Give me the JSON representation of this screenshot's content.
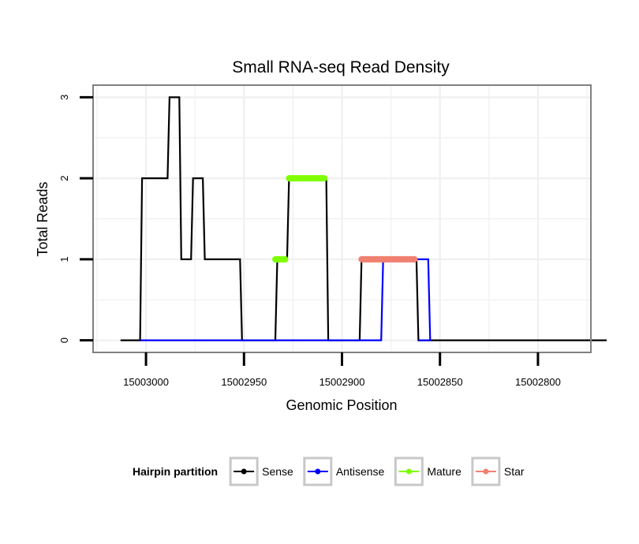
{
  "chart_data": {
    "type": "line",
    "title": "Small RNA-seq Read Density",
    "xlabel": "Genomic Position",
    "ylabel": "Total Reads",
    "x_reversed": true,
    "xlim": [
      15003027,
      15002773
    ],
    "ylim": [
      -0.15,
      3.15
    ],
    "x_ticks": [
      15003000,
      15002950,
      15002900,
      15002850,
      15002800
    ],
    "x_tick_labels": [
      "15003000",
      "15002950",
      "15002900",
      "15002850",
      "15002800"
    ],
    "y_ticks": [
      0,
      1,
      2,
      3
    ],
    "y_tick_labels": [
      "0",
      "1",
      "2",
      "3"
    ],
    "grid": true,
    "legend": {
      "title": "Hairpin partition",
      "placement": "bottom",
      "entries": [
        {
          "label": "Sense",
          "color": "#000000"
        },
        {
          "label": "Antisense",
          "color": "#0000ff"
        },
        {
          "label": "Mature",
          "color": "#7fff00"
        },
        {
          "label": "Star",
          "color": "#f08070"
        }
      ]
    },
    "series": [
      {
        "name": "Sense",
        "color": "#000000",
        "points": [
          [
            15003013,
            0
          ],
          [
            15003003,
            0
          ],
          [
            15003002,
            2
          ],
          [
            15002989,
            2
          ],
          [
            15002988,
            3
          ],
          [
            15002983,
            3
          ],
          [
            15002982,
            1
          ],
          [
            15002977,
            1
          ],
          [
            15002976,
            2
          ],
          [
            15002971,
            2
          ],
          [
            15002970,
            1
          ],
          [
            15002952,
            1
          ],
          [
            15002951,
            0
          ],
          [
            15002934,
            0
          ],
          [
            15002933,
            1
          ],
          [
            15002928,
            1
          ],
          [
            15002927,
            2
          ],
          [
            15002908,
            2
          ],
          [
            15002907,
            0
          ],
          [
            15002891,
            0
          ],
          [
            15002890,
            1
          ],
          [
            15002862,
            1
          ],
          [
            15002861,
            0
          ],
          [
            15002765,
            0
          ]
        ]
      },
      {
        "name": "Antisense",
        "color": "#0000ff",
        "points": [
          [
            15003003,
            0
          ],
          [
            15002880,
            0
          ],
          [
            15002879,
            1
          ],
          [
            15002856,
            1
          ],
          [
            15002855,
            0
          ],
          [
            15002861,
            0
          ]
        ]
      },
      {
        "name": "Mature",
        "color": "#7fff00",
        "segments": [
          {
            "from": 15002934,
            "to": 15002929,
            "y": 1
          },
          {
            "from": 15002927,
            "to": 15002909,
            "y": 2
          }
        ]
      },
      {
        "name": "Star",
        "color": "#f08070",
        "segments": [
          {
            "from": 15002890,
            "to": 15002863,
            "y": 1
          }
        ]
      }
    ]
  }
}
